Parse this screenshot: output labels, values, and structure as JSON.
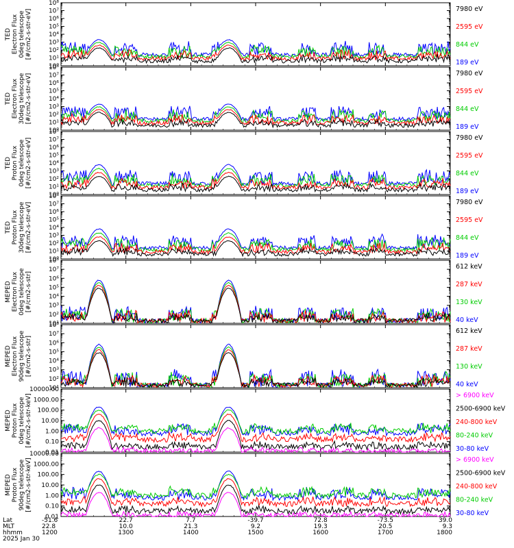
{
  "chart_data": [
    {
      "type": "line",
      "ylabel": [
        "TED",
        "Electron Flux",
        "0deg telescope",
        "[#/cm2-s-str-eV]"
      ],
      "y_scale": "log",
      "ylim_exp": [
        0,
        8
      ],
      "tick_labels": [
        "10⁰",
        "10¹",
        "10²",
        "10³",
        "10⁴",
        "10⁵",
        "10⁶",
        "10⁷",
        "10⁸"
      ],
      "legend": [
        {
          "label": "7980 eV",
          "color": "#000000"
        },
        {
          "label": "2595 eV",
          "color": "#ff0000"
        },
        {
          "label": "844 eV",
          "color": "#00cc00"
        },
        {
          "label": "189 eV",
          "color": "#0000ff"
        }
      ]
    },
    {
      "type": "line",
      "ylabel": [
        "TED",
        "Electron Flux",
        "30deg telescope",
        "[#/cm2-s-str-eV]"
      ],
      "y_scale": "log",
      "ylim_exp": [
        0,
        8
      ],
      "tick_labels": [
        "10⁰",
        "10¹",
        "10²",
        "10³",
        "10⁴",
        "10⁵",
        "10⁶",
        "10⁷",
        "10⁸"
      ],
      "legend": [
        {
          "label": "7980 eV",
          "color": "#000000"
        },
        {
          "label": "2595 eV",
          "color": "#ff0000"
        },
        {
          "label": "844 eV",
          "color": "#00cc00"
        },
        {
          "label": "189 eV",
          "color": "#0000ff"
        }
      ]
    },
    {
      "type": "line",
      "ylabel": [
        "TED",
        "Proton Flux",
        "0deg telescope",
        "[#/cm2-s-str-eV]"
      ],
      "y_scale": "log",
      "ylim_exp": [
        0,
        8
      ],
      "tick_labels": [
        "10⁰",
        "10¹",
        "10²",
        "10³",
        "10⁴",
        "10⁵",
        "10⁶",
        "10⁷",
        "10⁸"
      ],
      "legend": [
        {
          "label": "7980 eV",
          "color": "#000000"
        },
        {
          "label": "2595 eV",
          "color": "#ff0000"
        },
        {
          "label": "844 eV",
          "color": "#00cc00"
        },
        {
          "label": "189 eV",
          "color": "#0000ff"
        }
      ]
    },
    {
      "type": "line",
      "ylabel": [
        "TED",
        "Proton Flux",
        "30deg telescope",
        "[#/cm2-s-str-eV]"
      ],
      "y_scale": "log",
      "ylim_exp": [
        0,
        8
      ],
      "tick_labels": [
        "10⁰",
        "10¹",
        "10²",
        "10³",
        "10⁴",
        "10⁵",
        "10⁶",
        "10⁷",
        "10⁸"
      ],
      "legend": [
        {
          "label": "7980 eV",
          "color": "#000000"
        },
        {
          "label": "2595 eV",
          "color": "#ff0000"
        },
        {
          "label": "844 eV",
          "color": "#00cc00"
        },
        {
          "label": "189 eV",
          "color": "#0000ff"
        }
      ]
    },
    {
      "type": "line",
      "ylabel": [
        "MEPED",
        "Electron Flux",
        "0deg telescope",
        "[#/cm2-s-str]"
      ],
      "y_scale": "log",
      "ylim_exp": [
        1,
        8
      ],
      "tick_labels": [
        "10¹",
        "10²",
        "10³",
        "10⁴",
        "10⁵",
        "10⁶",
        "10⁷",
        "10⁸"
      ],
      "legend": [
        {
          "label": "612 keV",
          "color": "#000000"
        },
        {
          "label": "287 keV",
          "color": "#ff0000"
        },
        {
          "label": "130 keV",
          "color": "#00cc00"
        },
        {
          "label": "40 keV",
          "color": "#0000ff"
        }
      ]
    },
    {
      "type": "line",
      "ylabel": [
        "MEPED",
        "Electron Flux",
        "90deg telescope",
        "[#/cm2-s-str]"
      ],
      "y_scale": "log",
      "ylim_exp": [
        1,
        8
      ],
      "tick_labels": [
        "10¹",
        "10²",
        "10³",
        "10⁴",
        "10⁵",
        "10⁶",
        "10⁷",
        "10⁸"
      ],
      "legend": [
        {
          "label": "612 keV",
          "color": "#000000"
        },
        {
          "label": "287 keV",
          "color": "#ff0000"
        },
        {
          "label": "130 keV",
          "color": "#00cc00"
        },
        {
          "label": "40 keV",
          "color": "#0000ff"
        }
      ]
    },
    {
      "type": "line",
      "ylabel": [
        "MEPED",
        "Proton Flux",
        "0deg telescope",
        "[#/cm2-s-str-keV]"
      ],
      "y_scale": "log",
      "ylim_exp": [
        -2,
        4
      ],
      "tick_labels": [
        "0.01",
        "0.10",
        "1.00",
        "10.00",
        "100.00",
        "1000.00",
        "10000.00"
      ],
      "legend": [
        {
          "label": "> 6900 keV",
          "color": "#ff00ff"
        },
        {
          "label": "2500-6900 keV",
          "color": "#000000"
        },
        {
          "label": "240-800 keV",
          "color": "#ff0000"
        },
        {
          "label": "80-240 keV",
          "color": "#00cc00"
        },
        {
          "label": "30-80 keV",
          "color": "#0000ff"
        }
      ]
    },
    {
      "type": "line",
      "ylabel": [
        "MEPED",
        "Proton Flux",
        "90deg telescope",
        "[#/cm2-s-str-keV]"
      ],
      "y_scale": "log",
      "ylim_exp": [
        -2,
        4
      ],
      "tick_labels": [
        "0.01",
        "0.10",
        "1.00",
        "10.00",
        "100.00",
        "1000.00",
        "10000.00"
      ],
      "legend": [
        {
          "label": "> 6900 keV",
          "color": "#ff00ff"
        },
        {
          "label": "2500-6900 keV",
          "color": "#000000"
        },
        {
          "label": "240-800 keV",
          "color": "#ff0000"
        },
        {
          "label": "80-240 keV",
          "color": "#00cc00"
        },
        {
          "label": "30-80 keV",
          "color": "#0000ff"
        }
      ]
    }
  ],
  "x_axis": {
    "row_labels": [
      "Lat",
      "MLT",
      "hhmm"
    ],
    "date": "2025 Jan 30",
    "xlim_hhmm": [
      1200,
      1800
    ],
    "ticks": [
      {
        "hhmm": "1200",
        "lat": "-51.6",
        "mlt": "22.8"
      },
      {
        "hhmm": "1300",
        "lat": "22.7",
        "mlt": "10.0"
      },
      {
        "hhmm": "1400",
        "lat": "7.7",
        "mlt": "21.3"
      },
      {
        "hhmm": "1500",
        "lat": "-39.7",
        "mlt": "9.2"
      },
      {
        "hhmm": "1600",
        "lat": "72.8",
        "mlt": "19.3"
      },
      {
        "hhmm": "1700",
        "lat": "-73.5",
        "mlt": "20.5"
      },
      {
        "hhmm": "1800",
        "lat": "39.0",
        "mlt": "9.3"
      }
    ]
  }
}
